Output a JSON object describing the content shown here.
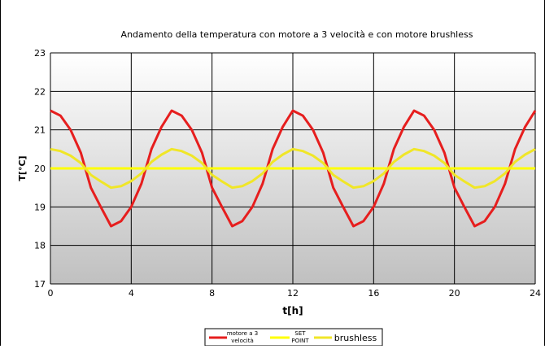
{
  "chart_data": {
    "type": "line",
    "title": "Andamento della temperatura con motore a 3 velocità e con motore brushless",
    "xlabel": "t[h]",
    "ylabel": "T[°C]",
    "xlim": [
      0,
      24
    ],
    "ylim": [
      17,
      23
    ],
    "x_ticks": [
      0,
      4,
      8,
      12,
      16,
      20,
      24
    ],
    "y_ticks": [
      17,
      18,
      19,
      20,
      21,
      22,
      23
    ],
    "grid": true,
    "legend_position": "bottom",
    "series": [
      {
        "name": "motore a 3 velocità",
        "legend_label_lines": [
          "motore a 3",
          "velocità"
        ],
        "color": "#e61e1e",
        "x": [
          0,
          0.5,
          1,
          1.5,
          2,
          2.5,
          3,
          3.5,
          4,
          4.5,
          5,
          5.5,
          6,
          6.5,
          7,
          7.5,
          8,
          8.5,
          9,
          9.5,
          10,
          10.5,
          11,
          11.5,
          12,
          12.5,
          13,
          13.5,
          14,
          14.5,
          15,
          15.5,
          16,
          16.5,
          17,
          17.5,
          18,
          18.5,
          19,
          19.5,
          20,
          20.5,
          21,
          21.5,
          22,
          22.5,
          23,
          23.5,
          24
        ],
        "y": [
          21.5,
          21.37,
          21.0,
          20.41,
          19.5,
          18.99,
          18.5,
          18.63,
          19.0,
          19.6,
          20.5,
          21.08,
          21.5,
          21.37,
          21.0,
          20.41,
          19.5,
          18.99,
          18.5,
          18.63,
          19.0,
          19.6,
          20.5,
          21.08,
          21.5,
          21.37,
          21.0,
          20.41,
          19.5,
          18.99,
          18.5,
          18.63,
          19.0,
          19.6,
          20.5,
          21.08,
          21.5,
          21.37,
          21.0,
          20.41,
          19.5,
          18.99,
          18.5,
          18.63,
          19.0,
          19.6,
          20.5,
          21.08,
          21.5
        ]
      },
      {
        "name": "SET POINT",
        "legend_label_lines": [
          "SET",
          "POINT"
        ],
        "color": "#ffff00",
        "x": [
          0,
          24
        ],
        "y": [
          20,
          20
        ]
      },
      {
        "name": "brushless",
        "legend_label_lines": [
          "brushless"
        ],
        "color": "#f0e628",
        "x": [
          0,
          0.5,
          1,
          1.5,
          2,
          2.5,
          3,
          3.5,
          4,
          4.5,
          5,
          5.5,
          6,
          6.5,
          7,
          7.5,
          8,
          8.5,
          9,
          9.5,
          10,
          10.5,
          11,
          11.5,
          12,
          12.5,
          13,
          13.5,
          14,
          14.5,
          15,
          15.5,
          16,
          16.5,
          17,
          17.5,
          18,
          18.5,
          19,
          19.5,
          20,
          20.5,
          21,
          21.5,
          22,
          22.5,
          23,
          23.5,
          24
        ],
        "y": [
          20.5,
          20.45,
          20.33,
          20.14,
          19.83,
          19.66,
          19.5,
          19.54,
          19.67,
          19.87,
          20.17,
          20.36,
          20.5,
          20.45,
          20.33,
          20.14,
          19.83,
          19.66,
          19.5,
          19.54,
          19.67,
          19.87,
          20.17,
          20.36,
          20.5,
          20.45,
          20.33,
          20.14,
          19.83,
          19.66,
          19.5,
          19.54,
          19.67,
          19.87,
          20.17,
          20.36,
          20.5,
          20.45,
          20.33,
          20.14,
          19.83,
          19.66,
          19.5,
          19.54,
          19.67,
          19.87,
          20.17,
          20.36,
          20.5
        ]
      }
    ]
  }
}
